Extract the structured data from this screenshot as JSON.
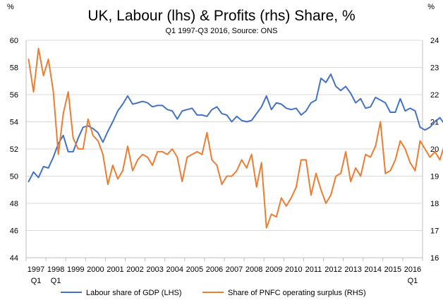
{
  "chart_data": {
    "type": "line",
    "title": "UK, Labour (lhs) & Profits (rhs) Share, %",
    "subtitle": "Q1 1997-Q3 2016, Source: ONS",
    "left_unit": "%",
    "right_unit": "%",
    "x_tick_labels": [
      "1997",
      "1998",
      "1999",
      "2000",
      "2001",
      "2002",
      "2003",
      "2004",
      "2005",
      "2006",
      "2007",
      "2008",
      "2009",
      "2010",
      "2011",
      "2012",
      "2013",
      "2014",
      "2015",
      "2016"
    ],
    "x_tick_sublabels": [
      "Q1",
      "Q1",
      "Q1"
    ],
    "y_left": {
      "min": 44,
      "max": 60,
      "step": 2,
      "ticks": [
        44,
        46,
        48,
        50,
        52,
        54,
        56,
        58,
        60
      ]
    },
    "y_right": {
      "min": 16,
      "max": 24,
      "step": 1,
      "ticks": [
        16,
        17,
        18,
        19,
        20,
        21,
        22,
        23,
        24
      ]
    },
    "grid": "horizontal",
    "legend_position": "bottom",
    "colors": {
      "labour": "#4472C4",
      "profits": "#ED7D31"
    },
    "series": [
      {
        "name": "Labour share of GDP (LHS)",
        "axis": "left",
        "values": [
          49.6,
          50.3,
          49.9,
          50.7,
          50.6,
          51.4,
          52.4,
          53.0,
          51.8,
          51.8,
          52.8,
          53.6,
          53.7,
          53.5,
          53.2,
          52.5,
          53.3,
          54.0,
          54.8,
          55.3,
          55.9,
          55.3,
          55.4,
          55.5,
          55.4,
          55.1,
          55.2,
          55.2,
          54.9,
          54.8,
          54.2,
          54.8,
          54.9,
          55.0,
          54.5,
          54.5,
          54.4,
          54.9,
          55.1,
          54.6,
          54.5,
          54.0,
          54.4,
          54.1,
          54.0,
          54.1,
          54.6,
          55.1,
          55.9,
          54.9,
          55.4,
          55.3,
          55.0,
          54.9,
          55.0,
          54.5,
          54.8,
          55.4,
          55.6,
          57.2,
          56.9,
          57.5,
          56.6,
          56.3,
          56.6,
          56.1,
          55.4,
          55.7,
          55.0,
          55.1,
          55.8,
          55.6,
          55.4,
          54.7,
          54.7,
          55.7,
          54.8,
          55.0,
          54.8,
          53.6,
          53.4,
          53.6,
          54.0,
          54.3,
          53.8,
          54.2,
          54.4,
          54.2,
          54.5,
          54.6
        ]
      },
      {
        "name": "Share of PNFC operating surplus (RHS)",
        "axis": "right",
        "values": [
          23.3,
          22.1,
          23.7,
          22.7,
          23.3,
          22.1,
          19.8,
          21.3,
          22.1,
          20.4,
          20.0,
          20.0,
          21.1,
          20.5,
          20.3,
          19.8,
          18.7,
          19.4,
          18.9,
          19.2,
          20.1,
          19.2,
          19.6,
          19.8,
          19.7,
          19.4,
          19.9,
          19.9,
          19.8,
          20.0,
          19.7,
          18.8,
          19.7,
          19.8,
          19.9,
          19.8,
          20.6,
          19.6,
          19.4,
          18.7,
          19.0,
          19.0,
          19.2,
          19.6,
          19.3,
          19.8,
          18.6,
          19.5,
          17.1,
          17.6,
          17.5,
          18.2,
          17.9,
          18.2,
          18.6,
          19.6,
          19.6,
          18.3,
          19.1,
          18.5,
          18.0,
          18.3,
          19.0,
          19.1,
          19.9,
          18.8,
          19.3,
          19.0,
          19.8,
          19.7,
          20.1,
          21.0,
          19.1,
          19.2,
          19.6,
          20.3,
          20.0,
          19.5,
          19.2,
          20.3,
          20.0,
          19.7,
          19.9,
          19.6,
          20.2,
          20.0,
          19.5,
          19.3,
          19.2,
          19.3
        ]
      }
    ]
  }
}
